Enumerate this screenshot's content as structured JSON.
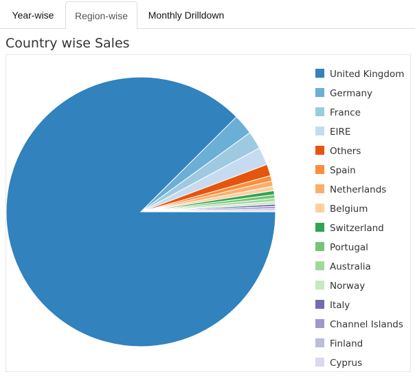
{
  "tabs": [
    {
      "label": "Year-wise",
      "active": false
    },
    {
      "label": "Region-wise",
      "active": true
    },
    {
      "label": "Monthly Drilldown",
      "active": false
    }
  ],
  "heading": "Country wise Sales",
  "chart_data": {
    "type": "pie",
    "title": "Country wise Sales",
    "legend_position": "right",
    "start_angle_deg": 0,
    "direction": "clockwise",
    "slices": [
      {
        "label": "United Kingdom",
        "value": 82.0,
        "color": "#3182bd"
      },
      {
        "label": "Germany",
        "value": 2.3,
        "color": "#6baed6"
      },
      {
        "label": "France",
        "value": 2.0,
        "color": "#9ecae1"
      },
      {
        "label": "EIRE",
        "value": 2.0,
        "color": "#c6dbef"
      },
      {
        "label": "Others",
        "value": 1.3,
        "color": "#e6550d"
      },
      {
        "label": "Spain",
        "value": 0.6,
        "color": "#fd8d3c"
      },
      {
        "label": "Netherlands",
        "value": 0.6,
        "color": "#fdae6b"
      },
      {
        "label": "Belgium",
        "value": 0.5,
        "color": "#fdd0a2"
      },
      {
        "label": "Switzerland",
        "value": 0.45,
        "color": "#31a354"
      },
      {
        "label": "Portugal",
        "value": 0.4,
        "color": "#74c476"
      },
      {
        "label": "Australia",
        "value": 0.35,
        "color": "#a1d99b"
      },
      {
        "label": "Norway",
        "value": 0.3,
        "color": "#c7e9c0"
      },
      {
        "label": "Italy",
        "value": 0.25,
        "color": "#756bb1"
      },
      {
        "label": "Channel Islands",
        "value": 0.25,
        "color": "#9e9ac8"
      },
      {
        "label": "Finland",
        "value": 0.2,
        "color": "#bcbddc"
      },
      {
        "label": "Cyprus",
        "value": 0.15,
        "color": "#dadaeb"
      }
    ]
  }
}
